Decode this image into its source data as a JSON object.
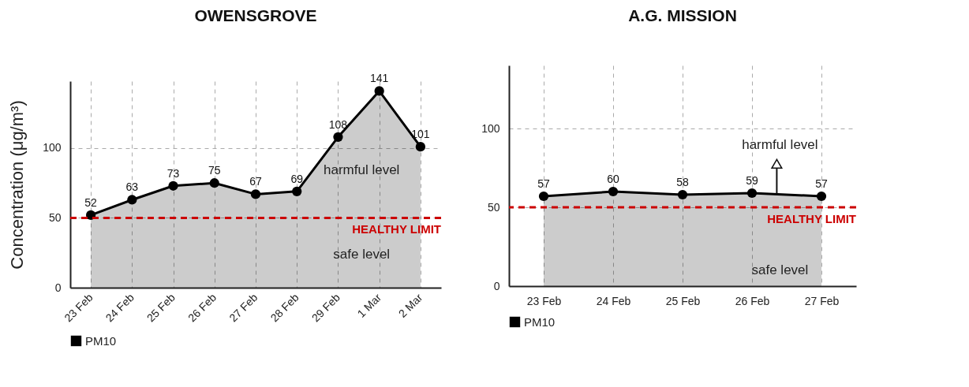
{
  "chart_data": [
    {
      "type": "area",
      "title": "OWENSGROVE",
      "ylabel": "Concentration (μg/m³)",
      "categories": [
        "23 Feb",
        "24 Feb",
        "25 Feb",
        "26 Feb",
        "27 Feb",
        "28 Feb",
        "29 Feb",
        "1 Mar",
        "2 Mar"
      ],
      "series": [
        {
          "name": "PM10",
          "color": "#000000",
          "values": [
            52,
            63,
            73,
            75,
            67,
            69,
            108,
            141,
            101
          ]
        }
      ],
      "ylim": [
        0,
        148
      ],
      "yticks": [
        0,
        50,
        100
      ],
      "grid": true,
      "legend": "bottom",
      "marker": "circle",
      "line_style": "solid",
      "data_labels": true,
      "ref_lines": [
        {
          "axis": "y",
          "value": 50,
          "label": "HEALTHY LIMIT",
          "color": "#cc0000",
          "line_style": "dashed"
        }
      ],
      "annotations": [
        "harmful level",
        "safe level"
      ]
    },
    {
      "type": "area",
      "title": "A.G. MISSION",
      "categories": [
        "23 Feb",
        "24 Feb",
        "25 Feb",
        "26 Feb",
        "27 Feb"
      ],
      "series": [
        {
          "name": "PM10",
          "color": "#000000",
          "values": [
            57,
            60,
            58,
            59,
            57
          ]
        }
      ],
      "ylim": [
        0,
        140
      ],
      "yticks": [
        0,
        50,
        100
      ],
      "grid": true,
      "legend": "bottom",
      "marker": "circle",
      "line_style": "solid",
      "data_labels": true,
      "ref_lines": [
        {
          "axis": "y",
          "value": 50,
          "label": "HEALTHY LIMIT",
          "color": "#cc0000",
          "line_style": "dashed"
        }
      ],
      "annotations": [
        "harmful level",
        "safe level"
      ]
    }
  ]
}
